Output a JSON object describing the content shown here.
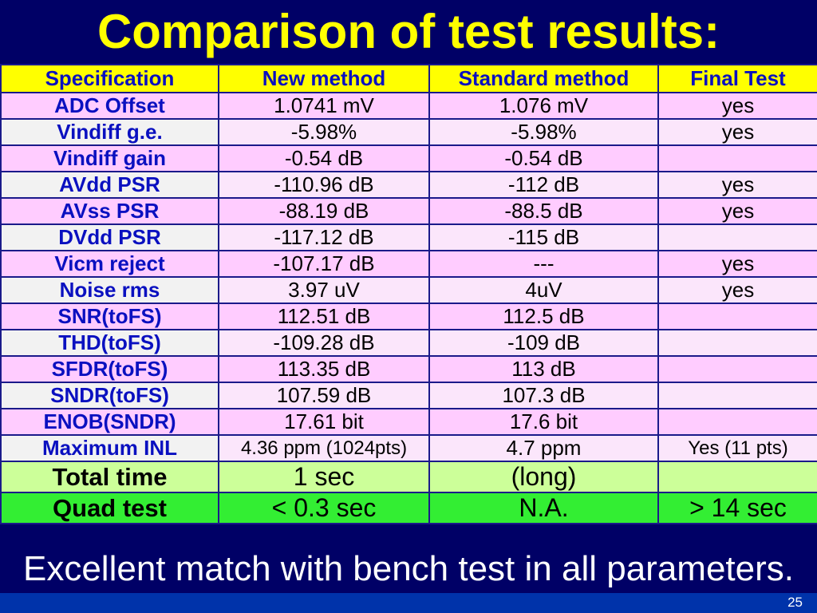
{
  "title": "Comparison of test results:",
  "headers": [
    "Specification",
    "New method",
    "Standard method",
    "Final Test"
  ],
  "rows": [
    {
      "spec": "ADC Offset",
      "new": "1.0741 mV",
      "std": "1.076 mV",
      "final": "yes"
    },
    {
      "spec": "Vindiff g.e.",
      "new": "-5.98%",
      "std": "-5.98%",
      "final": "yes"
    },
    {
      "spec": "Vindiff gain",
      "new": "-0.54 dB",
      "std": "-0.54 dB",
      "final": ""
    },
    {
      "spec": "AVdd PSR",
      "new": "-110.96 dB",
      "std": "-112 dB",
      "final": "yes"
    },
    {
      "spec": "AVss PSR",
      "new": "-88.19 dB",
      "std": "-88.5 dB",
      "final": "yes"
    },
    {
      "spec": "DVdd PSR",
      "new": "-117.12 dB",
      "std": "-115 dB",
      "final": ""
    },
    {
      "spec": "Vicm reject",
      "new": "-107.17 dB",
      "std": "---",
      "final": "yes"
    },
    {
      "spec": "Noise rms",
      "new": "3.97 uV",
      "std": "4uV",
      "final": "yes"
    },
    {
      "spec": "SNR(toFS)",
      "new": "112.51 dB",
      "std": "112.5 dB",
      "final": ""
    },
    {
      "spec": "THD(toFS)",
      "new": "-109.28 dB",
      "std": "-109 dB",
      "final": ""
    },
    {
      "spec": "SFDR(toFS)",
      "new": "113.35 dB",
      "std": "113 dB",
      "final": ""
    },
    {
      "spec": "SNDR(toFS)",
      "new": "107.59 dB",
      "std": "107.3 dB",
      "final": ""
    },
    {
      "spec": "ENOB(SNDR)",
      "new": "17.61 bit",
      "std": "17.6 bit",
      "final": ""
    },
    {
      "spec": "Maximum INL",
      "new": "4.36 ppm (1024pts)",
      "std": "4.7 ppm",
      "final": "Yes (11 pts)"
    }
  ],
  "total": {
    "spec": "Total time",
    "new": "1 sec",
    "std": "(long)",
    "final": ""
  },
  "quad": {
    "spec": "Quad test",
    "new": "< 0.3 sec",
    "std": "N.A.",
    "final": "> 14 sec"
  },
  "footer_text": "Excellent match with bench test in all parameters.",
  "page_number": "25",
  "colors": {
    "background": "#000066",
    "title": "#ffff00",
    "header": "#ffff00",
    "row_pink": "#ffccff",
    "total": "#ccff99",
    "quad": "#33ee33",
    "spec_text": "#0a10c0"
  }
}
